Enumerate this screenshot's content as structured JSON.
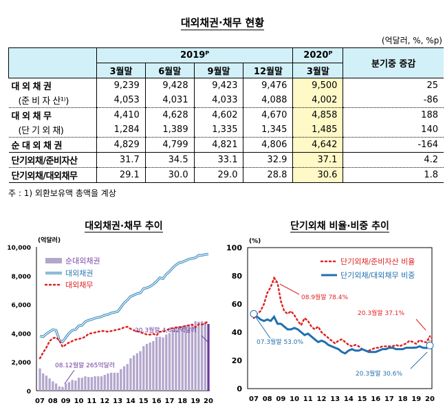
{
  "title": "대외채권·채무 현황",
  "unit": "(억달러, %, %p)",
  "table": {
    "year_headers": [
      "2019ᴾ",
      "2020ᴾ"
    ],
    "change_header": "분기중 증감",
    "columns": [
      "3월말",
      "6월말",
      "9월말",
      "12월말",
      "3월말"
    ],
    "rows": [
      {
        "label": "대 외 채 권",
        "values": [
          "9,239",
          "9,428",
          "9,423",
          "9,476",
          "9,500",
          "25"
        ]
      },
      {
        "label": "(준 비 자 산¹⁾)",
        "values": [
          "4,053",
          "4,031",
          "4,033",
          "4,088",
          "4,002",
          "-86"
        ]
      },
      {
        "label": "대 외 채 무",
        "values": [
          "4,410",
          "4,628",
          "4,602",
          "4,670",
          "4,858",
          "188"
        ]
      },
      {
        "label": "(단 기 외 채)",
        "values": [
          "1,284",
          "1,389",
          "1,335",
          "1,345",
          "1,485",
          "140"
        ]
      },
      {
        "label": "순 대 외 채 권",
        "values": [
          "4,829",
          "4,799",
          "4,821",
          "4,806",
          "4,642",
          "-164"
        ]
      },
      {
        "label": "단기외채/준비자산",
        "values": [
          "31.7",
          "34.5",
          "33.1",
          "32.9",
          "37.1",
          "4.2"
        ]
      },
      {
        "label": "단기외채/대외채무",
        "values": [
          "29.1",
          "30.0",
          "29.0",
          "28.8",
          "30.6",
          "1.8"
        ]
      }
    ]
  },
  "note": "주 : 1) 외환보유액 총액을 계상",
  "chart_data": [
    {
      "type": "bar+line",
      "title": "대외채권·채무 추이",
      "ylabel": "(억달러)",
      "ylim": [
        0,
        10000
      ],
      "yticks": [
        "0",
        "2,000",
        "4,000",
        "6,000",
        "8,000",
        "10,000"
      ],
      "xticks": [
        "07",
        "08",
        "09",
        "10",
        "11",
        "12",
        "13",
        "14",
        "15",
        "16",
        "17",
        "18",
        "19",
        "20"
      ],
      "x_note": "quarterly, 2007Q1–2020Q1",
      "series": [
        {
          "name": "순대외채권",
          "kind": "bar",
          "color": "#b3a6cc",
          "values": [
            1550,
            1200,
            1050,
            850,
            650,
            500,
            300,
            265,
            500,
            600,
            750,
            700,
            900,
            900,
            1000,
            950,
            950,
            1000,
            1000,
            1000,
            1100,
            1200,
            1250,
            1250,
            1250,
            1500,
            1700,
            1850,
            2250,
            2450,
            2600,
            2750,
            3100,
            3250,
            3350,
            3450,
            3750,
            3750,
            3700,
            3900,
            4000,
            4200,
            4350,
            4500,
            4500,
            4550,
            4600,
            4600,
            4829,
            4799,
            4821,
            4806,
            4642
          ]
        },
        {
          "name": "대외채권",
          "kind": "line",
          "color": "#3a8bbf",
          "values": [
            3800,
            3750,
            3950,
            4100,
            4250,
            4200,
            3500,
            3400,
            3700,
            4000,
            4200,
            4250,
            4500,
            4550,
            4800,
            4900,
            4950,
            5050,
            5100,
            5150,
            5250,
            5300,
            5400,
            5450,
            5500,
            5800,
            6100,
            6300,
            6550,
            6650,
            6750,
            6800,
            7100,
            7150,
            7250,
            7400,
            7600,
            7850,
            7800,
            8100,
            8300,
            8550,
            8750,
            8900,
            8950,
            9050,
            9150,
            9200,
            9239,
            9428,
            9423,
            9476,
            9500
          ]
        },
        {
          "name": "대외채무",
          "kind": "dotted",
          "color": "#e02020",
          "values": [
            2250,
            2650,
            3000,
            3450,
            3650,
            3700,
            3500,
            3050,
            3200,
            3350,
            3450,
            3550,
            3600,
            3650,
            3750,
            3950,
            4000,
            4050,
            4100,
            4150,
            4150,
            4100,
            4150,
            4200,
            4250,
            4300,
            4400,
            4450,
            4300,
            4200,
            4150,
            4050,
            4000,
            3900,
            3900,
            3950,
            3850,
            4100,
            4100,
            4200,
            4300,
            4350,
            4400,
            4400,
            4450,
            4500,
            4550,
            4600,
            4410,
            4628,
            4602,
            4670,
            4858
          ]
        }
      ],
      "annotations": [
        "08.12월말 265억달러",
        "20.3월말 4,642억달러"
      ]
    },
    {
      "type": "line",
      "title": "단기외채 비율·비중 추이",
      "ylabel": "(%)",
      "ylim": [
        0,
        100
      ],
      "yticks": [
        "0",
        "20",
        "40",
        "60",
        "80",
        "100"
      ],
      "xticks": [
        "07",
        "08",
        "09",
        "10",
        "11",
        "12",
        "13",
        "14",
        "15",
        "16",
        "17",
        "18",
        "19",
        "20"
      ],
      "series": [
        {
          "name": "단기외채/준비자산 비율",
          "kind": "dotted",
          "color": "#e02020",
          "values": [
            50,
            53,
            55,
            60,
            68,
            72,
            78.4,
            75,
            62,
            55,
            53,
            55,
            52,
            48,
            45,
            50,
            48,
            44,
            42,
            44,
            40,
            38,
            36,
            34,
            32,
            34,
            35,
            33,
            31,
            30,
            31,
            30,
            28,
            27,
            27,
            28,
            29,
            29,
            30,
            30,
            30,
            30,
            31,
            30,
            31,
            32,
            34,
            33,
            31.7,
            34.5,
            33.1,
            32.9,
            37.1
          ]
        },
        {
          "name": "단기외채/대외채무 비중",
          "kind": "line",
          "color": "#1f6fb0",
          "values": [
            53.0,
            51,
            49,
            48,
            49,
            48,
            51,
            46,
            46,
            44,
            42,
            42,
            43,
            42,
            40,
            38,
            39,
            37,
            35,
            33,
            34,
            33,
            31,
            30,
            29,
            28,
            26,
            25,
            27,
            28,
            27,
            27,
            28,
            27,
            26,
            26,
            26,
            27,
            28,
            28,
            29,
            29,
            28,
            28,
            28,
            29,
            29,
            29,
            29.1,
            30.0,
            29.0,
            28.8,
            30.6
          ]
        }
      ],
      "annotations": [
        "08.9월말 78.4%",
        "20.3월말 37.1%",
        "07.3월말 53.0%",
        "20.3월말 30.6%"
      ]
    }
  ]
}
